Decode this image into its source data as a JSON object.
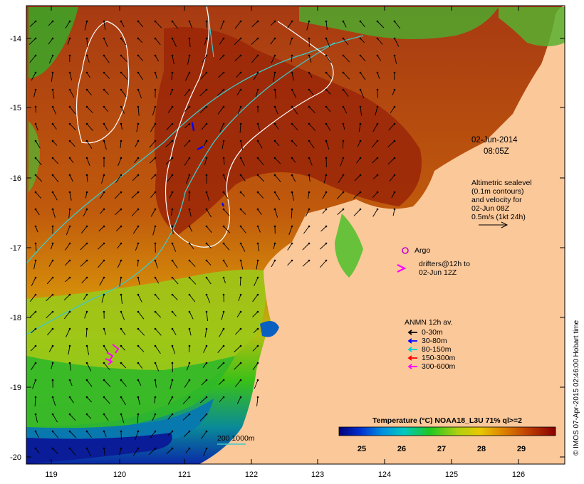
{
  "map": {
    "date": "02-Jun-2014",
    "time": "08:05Z",
    "lon_ticks": [
      "119",
      "120",
      "121",
      "122",
      "123",
      "124",
      "125",
      "126"
    ],
    "lat_ticks": [
      "-14",
      "-15",
      "-16",
      "-17",
      "-18",
      "-19",
      "-20"
    ],
    "altimetry_lines": [
      "Altimetric sealevel",
      "(0.1m contours)",
      "and velocity for",
      "02-Jun 08Z",
      "0.5m/s (1kt 24h)"
    ],
    "argo_label": "Argo",
    "drifters_lines": [
      "drifters@12h to",
      "02-Jun 12Z"
    ],
    "anmn_title": "ANMN 12h av.",
    "anmn_legend": [
      {
        "label": "0-30m",
        "color": "#000000"
      },
      {
        "label": "30-80m",
        "color": "#0000ff"
      },
      {
        "label": "80-150m",
        "color": "#00d0d0"
      },
      {
        "label": "150-300m",
        "color": "#ff0000"
      },
      {
        "label": "300-600m",
        "color": "#ff00ff"
      }
    ],
    "isobath_label": "200  1000m",
    "colorbar_title": "Temperature (°C) NOAA18_L3U 71% ql>=2",
    "colorbar_ticks": [
      "25",
      "26",
      "27",
      "28",
      "29"
    ],
    "credit": "© IMOS 07-Apr-2015 02:46:00 Hobart time",
    "colors": {
      "land": "#fbc89a",
      "argo": "#cc00cc",
      "drifters": "#ff00ff",
      "isobath": "#40c8c8",
      "sealevel_contour": "#ffffff"
    }
  }
}
